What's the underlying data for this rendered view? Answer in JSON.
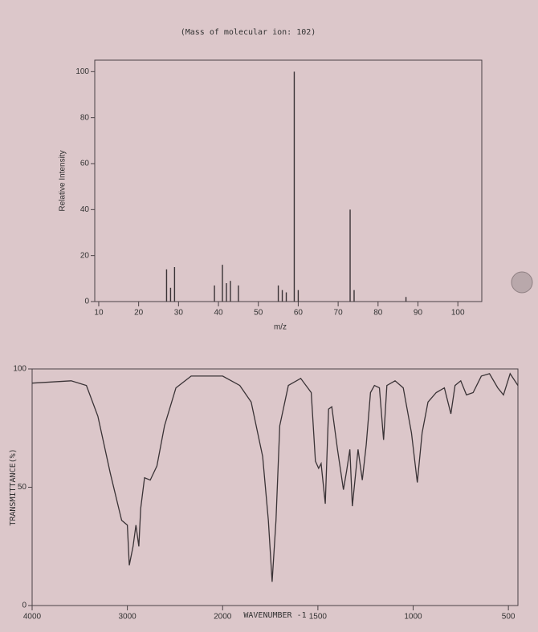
{
  "chart_data": [
    {
      "type": "bar",
      "title": "(Mass of molecular ion:    102)",
      "x_label": "m/z",
      "y_label": "Relative Intensity",
      "x": [
        27,
        28,
        29,
        39,
        41,
        42,
        43,
        45,
        55,
        56,
        57,
        59,
        60,
        73,
        74,
        87
      ],
      "values": [
        14,
        6,
        15,
        7,
        16,
        8,
        9,
        7,
        7,
        5,
        4,
        100,
        5,
        40,
        5,
        2
      ],
      "color": "#3a3336",
      "xlim": [
        9,
        106
      ],
      "xticks": [
        10,
        20,
        30,
        40,
        50,
        60,
        70,
        80,
        90,
        100
      ],
      "ylim": [
        0,
        105
      ],
      "yticks": [
        0,
        20,
        40,
        60,
        80,
        100
      ]
    },
    {
      "type": "line",
      "x_label": "WAVENUMBER -1",
      "y_label": "TRANSMITTANCE(%)",
      "x": [
        4000,
        3590,
        3430,
        3310,
        3180,
        3060,
        3000,
        2980,
        2940,
        2910,
        2880,
        2860,
        2820,
        2760,
        2690,
        2610,
        2490,
        2330,
        2120,
        2000,
        1910,
        1850,
        1790,
        1760,
        1740,
        1720,
        1700,
        1655,
        1590,
        1535,
        1513,
        1496,
        1483,
        1461,
        1444,
        1427,
        1397,
        1366,
        1349,
        1332,
        1319,
        1289,
        1267,
        1246,
        1224,
        1203,
        1177,
        1155,
        1138,
        1095,
        1052,
        1009,
        978,
        953,
        922,
        879,
        836,
        802,
        780,
        750,
        720,
        685,
        642,
        599,
        556,
        526,
        491,
        450
      ],
      "values": [
        94,
        95,
        93,
        80,
        56,
        36,
        34,
        17,
        25,
        34,
        25,
        41,
        54,
        53,
        59,
        76,
        92,
        97,
        97,
        97,
        93,
        86,
        63,
        36,
        10,
        36,
        76,
        93,
        96,
        90,
        61,
        58,
        60,
        43,
        83,
        84,
        66,
        49,
        57,
        66,
        42,
        66,
        53,
        68,
        90,
        93,
        92,
        70,
        93,
        95,
        92,
        73,
        52,
        73,
        86,
        90,
        92,
        81,
        93,
        95,
        89,
        90,
        97,
        98,
        92,
        89,
        98,
        93
      ],
      "color": "#3a3336",
      "xlim": [
        4000,
        450
      ],
      "xticks": [
        4000,
        3000,
        2000,
        1500,
        1000,
        500
      ],
      "ylim": [
        0,
        100
      ],
      "yticks": [
        0,
        50,
        100
      ]
    }
  ]
}
